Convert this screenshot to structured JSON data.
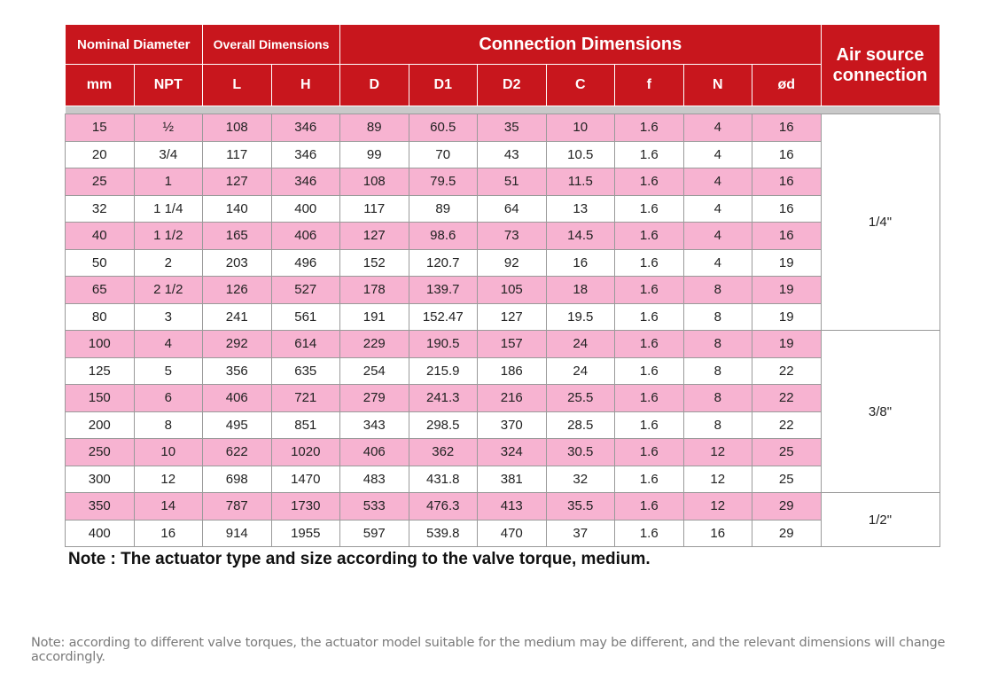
{
  "headers": {
    "nominal_diameter": "Nominal Diameter",
    "overall_dimensions": "Overall Dimensions",
    "connection_dimensions": "Connection Dimensions",
    "air_source_connection": "Air source connection",
    "sub": [
      "mm",
      "NPT",
      "L",
      "H",
      "D",
      "D1",
      "D2",
      "C",
      "f",
      "N",
      "ød"
    ]
  },
  "rows": [
    [
      "15",
      "½",
      "108",
      "346",
      "89",
      "60.5",
      "35",
      "10",
      "1.6",
      "4",
      "16"
    ],
    [
      "20",
      "3/4",
      "117",
      "346",
      "99",
      "70",
      "43",
      "10.5",
      "1.6",
      "4",
      "16"
    ],
    [
      "25",
      "1",
      "127",
      "346",
      "108",
      "79.5",
      "51",
      "11.5",
      "1.6",
      "4",
      "16"
    ],
    [
      "32",
      "1 1/4",
      "140",
      "400",
      "117",
      "89",
      "64",
      "13",
      "1.6",
      "4",
      "16"
    ],
    [
      "40",
      "1 1/2",
      "165",
      "406",
      "127",
      "98.6",
      "73",
      "14.5",
      "1.6",
      "4",
      "16"
    ],
    [
      "50",
      "2",
      "203",
      "496",
      "152",
      "120.7",
      "92",
      "16",
      "1.6",
      "4",
      "19"
    ],
    [
      "65",
      "2 1/2",
      "126",
      "527",
      "178",
      "139.7",
      "105",
      "18",
      "1.6",
      "8",
      "19"
    ],
    [
      "80",
      "3",
      "241",
      "561",
      "191",
      "152.47",
      "127",
      "19.5",
      "1.6",
      "8",
      "19"
    ],
    [
      "100",
      "4",
      "292",
      "614",
      "229",
      "190.5",
      "157",
      "24",
      "1.6",
      "8",
      "19"
    ],
    [
      "125",
      "5",
      "356",
      "635",
      "254",
      "215.9",
      "186",
      "24",
      "1.6",
      "8",
      "22"
    ],
    [
      "150",
      "6",
      "406",
      "721",
      "279",
      "241.3",
      "216",
      "25.5",
      "1.6",
      "8",
      "22"
    ],
    [
      "200",
      "8",
      "495",
      "851",
      "343",
      "298.5",
      "370",
      "28.5",
      "1.6",
      "8",
      "22"
    ],
    [
      "250",
      "10",
      "622",
      "1020",
      "406",
      "362",
      "324",
      "30.5",
      "1.6",
      "12",
      "25"
    ],
    [
      "300",
      "12",
      "698",
      "1470",
      "483",
      "431.8",
      "381",
      "32",
      "1.6",
      "12",
      "25"
    ],
    [
      "350",
      "14",
      "787",
      "1730",
      "533",
      "476.3",
      "413",
      "35.5",
      "1.6",
      "12",
      "29"
    ],
    [
      "400",
      "16",
      "914",
      "1955",
      "597",
      "539.8",
      "470",
      "37",
      "1.6",
      "16",
      "29"
    ]
  ],
  "air_groups": [
    {
      "label": "1/4\"",
      "rows": 8
    },
    {
      "label": "3/8\"",
      "rows": 6
    },
    {
      "label": "1/2\"",
      "rows": 2
    }
  ],
  "note_main": "Note : The actuator type and size according to the valve torque, medium.",
  "note_sub": "Note: according to different valve torques, the actuator model suitable for the medium may be different, and the relevant dimensions will change accordingly.",
  "colors": {
    "header_red": "#c8161d",
    "row_pink": "#f7b3d1"
  }
}
